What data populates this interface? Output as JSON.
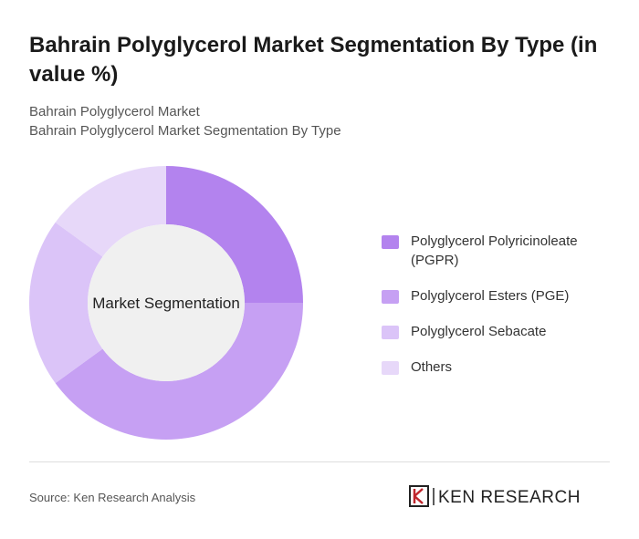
{
  "chart_data": {
    "type": "donut",
    "title": "Bahrain Polyglycerol Market Segmentation By Type (in value %)",
    "subtitle": [
      "Bahrain Polyglycerol Market",
      "Bahrain Polyglycerol Market Segmentation By Type"
    ],
    "center_label": "Market Segmentation",
    "categories": [
      "Polyglycerol Polyricinoleate (PGPR)",
      "Polyglycerol Esters (PGE)",
      "Polyglycerol Sebacate",
      "Others"
    ],
    "values": [
      25,
      40,
      20,
      15
    ],
    "colors": [
      "#b383ee",
      "#c6a0f3",
      "#dbc4f8",
      "#e7d8f9"
    ],
    "source": "Source: Ken Research Analysis",
    "logo": "KEN RESEARCH"
  }
}
